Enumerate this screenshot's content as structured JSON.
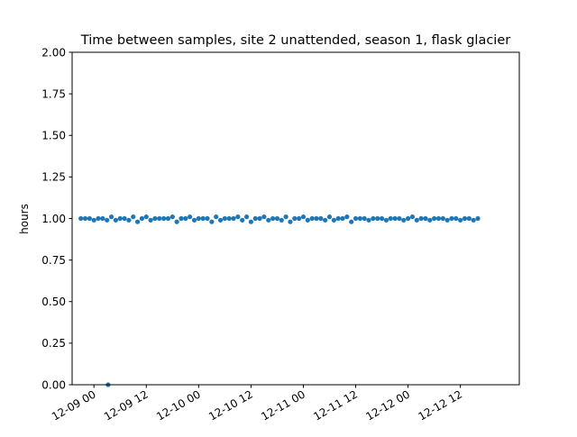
{
  "chart_data": {
    "type": "scatter",
    "title": "Time between samples, site 2 unattended, season 1, flask glacier",
    "xlabel": "",
    "ylabel": "hours",
    "ylim": [
      0,
      2.0
    ],
    "xlim": [
      "2022-12-08 19:00",
      "2022-12-13 01:30"
    ],
    "x_tick_labels": [
      "12-09 00",
      "12-09 12",
      "12-10 00",
      "12-10 12",
      "12-11 00",
      "12-11 12",
      "12-12 00",
      "12-12 12"
    ],
    "x_tick_times": [
      "2022-12-09 00:00",
      "2022-12-09 12:00",
      "2022-12-10 00:00",
      "2022-12-10 12:00",
      "2022-12-11 00:00",
      "2022-12-11 12:00",
      "2022-12-12 00:00",
      "2022-12-12 12:00"
    ],
    "y_tick_labels": [
      "0.00",
      "0.25",
      "0.50",
      "0.75",
      "1.00",
      "1.25",
      "1.50",
      "1.75",
      "2.00"
    ],
    "y_tick_values": [
      0,
      0.25,
      0.5,
      0.75,
      1.0,
      1.25,
      1.5,
      1.75,
      2.0
    ],
    "marker_color": "#1f77b4",
    "grid": false,
    "series": [
      {
        "start": "2022-12-08 21:00",
        "step_hours": 1,
        "values": [
          1.0,
          1.0,
          1.0,
          0.99,
          1.0,
          1.0,
          0.99,
          1.01,
          0.99,
          1.0,
          1.0,
          0.99,
          1.01,
          0.98,
          1.0,
          1.01,
          0.99,
          1.0,
          1.0,
          1.0,
          1.0,
          1.01,
          0.98,
          1.0,
          1.0,
          1.01,
          0.99,
          1.0,
          1.0,
          1.0,
          0.98,
          1.01,
          0.99,
          1.0,
          1.0,
          1.0,
          1.01,
          0.99,
          1.01,
          0.98,
          1.0,
          1.0,
          1.01,
          0.99,
          1.0,
          1.0,
          0.99,
          1.01,
          0.98,
          1.0,
          1.0,
          1.01,
          0.99,
          1.0,
          1.0,
          1.0,
          0.99,
          1.01,
          0.99,
          1.0,
          1.0,
          1.01,
          0.98,
          1.0,
          1.0,
          1.0,
          0.99,
          1.0,
          1.0,
          1.0,
          0.99,
          1.0,
          1.0,
          1.0,
          0.99,
          1.0,
          1.01,
          0.99,
          1.0,
          1.0,
          0.99,
          1.0,
          1.0,
          1.0,
          0.99,
          1.0,
          1.0,
          0.99,
          1.0,
          1.0,
          0.99,
          1.0
        ]
      },
      {
        "x": [
          "2022-12-09 03:15"
        ],
        "values": [
          0.0
        ]
      }
    ]
  }
}
